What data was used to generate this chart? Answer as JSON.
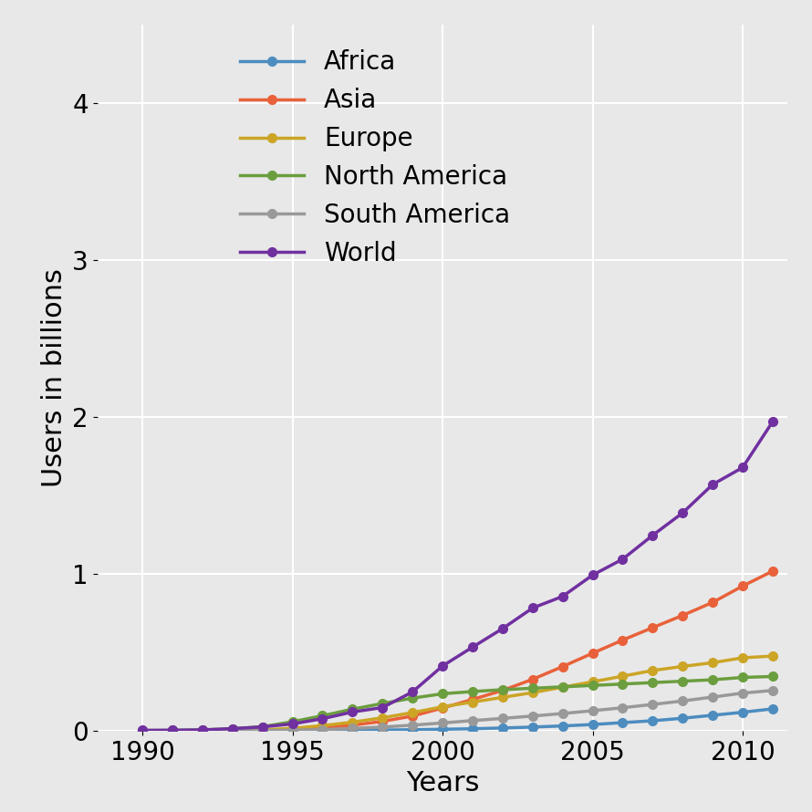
{
  "years": [
    1990,
    1991,
    1992,
    1993,
    1994,
    1995,
    1996,
    1997,
    1998,
    1999,
    2000,
    2001,
    2002,
    2003,
    2004,
    2005,
    2006,
    2007,
    2008,
    2009,
    2010,
    2011
  ],
  "Africa": [
    0.0,
    0.0,
    0.0,
    0.0,
    0.001,
    0.001,
    0.002,
    0.003,
    0.005,
    0.007,
    0.01,
    0.013,
    0.018,
    0.024,
    0.031,
    0.04,
    0.052,
    0.064,
    0.08,
    0.099,
    0.118,
    0.14
  ],
  "Asia": [
    0.0,
    0.0,
    0.001,
    0.002,
    0.004,
    0.009,
    0.019,
    0.036,
    0.06,
    0.094,
    0.145,
    0.2,
    0.257,
    0.328,
    0.409,
    0.494,
    0.578,
    0.657,
    0.735,
    0.818,
    0.922,
    1.017
  ],
  "Europe": [
    0.0,
    0.0,
    0.001,
    0.002,
    0.006,
    0.016,
    0.033,
    0.055,
    0.083,
    0.116,
    0.153,
    0.183,
    0.213,
    0.243,
    0.278,
    0.312,
    0.348,
    0.384,
    0.41,
    0.434,
    0.465,
    0.476
  ],
  "North America": [
    0.002,
    0.003,
    0.006,
    0.013,
    0.026,
    0.058,
    0.096,
    0.138,
    0.174,
    0.208,
    0.236,
    0.25,
    0.262,
    0.271,
    0.28,
    0.289,
    0.298,
    0.307,
    0.316,
    0.325,
    0.34,
    0.346
  ],
  "South America": [
    0.0,
    0.0,
    0.0,
    0.001,
    0.002,
    0.004,
    0.008,
    0.015,
    0.024,
    0.036,
    0.05,
    0.065,
    0.079,
    0.094,
    0.11,
    0.128,
    0.147,
    0.168,
    0.19,
    0.215,
    0.24,
    0.257
  ],
  "World": [
    0.003,
    0.004,
    0.006,
    0.014,
    0.025,
    0.044,
    0.077,
    0.12,
    0.148,
    0.248,
    0.413,
    0.533,
    0.651,
    0.782,
    0.856,
    0.992,
    1.093,
    1.245,
    1.388,
    1.569,
    1.677,
    1.969
  ],
  "colors": {
    "Africa": "#4C8CBF",
    "Asia": "#E8613A",
    "Europe": "#CCA526",
    "North America": "#6B9E3F",
    "South America": "#999999",
    "World": "#7030A0"
  },
  "ylabel": "Users in billions",
  "xlabel": "Years",
  "ylim": [
    0,
    4.5
  ],
  "xlim": [
    1988.5,
    2011.5
  ],
  "yticks": [
    0,
    1,
    2,
    3,
    4
  ],
  "xticks": [
    1990,
    1995,
    2000,
    2005,
    2010
  ],
  "bg_color": "#E8E8E8",
  "grid_color": "#FFFFFF",
  "fontsize_label": 22,
  "fontsize_tick": 20,
  "fontsize_legend": 20,
  "marker": "o",
  "markersize": 7,
  "linewidth": 2.5
}
